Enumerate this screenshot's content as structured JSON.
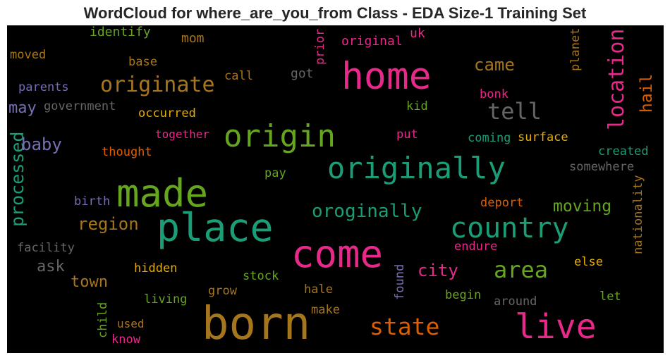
{
  "title": "WordCloud for where_are_you_from Class - EDA Size-1 Training Set",
  "background": "#000000",
  "words": [
    {
      "text": "born",
      "color": "#a6761d",
      "vertical": false
    },
    {
      "text": "place",
      "color": "#1b9e77",
      "vertical": false
    },
    {
      "text": "made",
      "color": "#66a61e",
      "vertical": false
    },
    {
      "text": "come",
      "color": "#e7298a",
      "vertical": false
    },
    {
      "text": "home",
      "color": "#e7298a",
      "vertical": false
    },
    {
      "text": "live",
      "color": "#e7298a",
      "vertical": false
    },
    {
      "text": "origin",
      "color": "#66a61e",
      "vertical": false
    },
    {
      "text": "originally",
      "color": "#1b9e77",
      "vertical": false
    },
    {
      "text": "country",
      "color": "#1b9e77",
      "vertical": false
    },
    {
      "text": "state",
      "color": "#d95f02",
      "vertical": false
    },
    {
      "text": "area",
      "color": "#66a61e",
      "vertical": false
    },
    {
      "text": "tell",
      "color": "#666666",
      "vertical": false
    },
    {
      "text": "originate",
      "color": "#a6761d",
      "vertical": false
    },
    {
      "text": "location",
      "color": "#e7298a",
      "vertical": true
    },
    {
      "text": "oroginally",
      "color": "#1b9e77",
      "vertical": false
    },
    {
      "text": "processed",
      "color": "#1b9e77",
      "vertical": true
    },
    {
      "text": "region",
      "color": "#a6761d",
      "vertical": false
    },
    {
      "text": "city",
      "color": "#e7298a",
      "vertical": false
    },
    {
      "text": "moving",
      "color": "#66a61e",
      "vertical": false
    },
    {
      "text": "baby",
      "color": "#7570b3",
      "vertical": false
    },
    {
      "text": "came",
      "color": "#a6761d",
      "vertical": false
    },
    {
      "text": "hail",
      "color": "#d95f02",
      "vertical": true
    },
    {
      "text": "town",
      "color": "#a6761d",
      "vertical": false
    },
    {
      "text": "ask",
      "color": "#666666",
      "vertical": false
    },
    {
      "text": "may",
      "color": "#7570b3",
      "vertical": false
    },
    {
      "text": "identify",
      "color": "#66a61e",
      "vertical": false
    },
    {
      "text": "mom",
      "color": "#a6761d",
      "vertical": false
    },
    {
      "text": "prior",
      "color": "#e7298a",
      "vertical": true
    },
    {
      "text": "original",
      "color": "#e7298a",
      "vertical": false
    },
    {
      "text": "uk",
      "color": "#e7298a",
      "vertical": false
    },
    {
      "text": "moved",
      "color": "#a6761d",
      "vertical": false
    },
    {
      "text": "base",
      "color": "#a6761d",
      "vertical": false
    },
    {
      "text": "planet",
      "color": "#a6761d",
      "vertical": true
    },
    {
      "text": "parents",
      "color": "#7570b3",
      "vertical": false
    },
    {
      "text": "call",
      "color": "#a6761d",
      "vertical": false
    },
    {
      "text": "got",
      "color": "#666666",
      "vertical": false
    },
    {
      "text": "government",
      "color": "#666666",
      "vertical": false
    },
    {
      "text": "bonk",
      "color": "#e7298a",
      "vertical": false
    },
    {
      "text": "occurred",
      "color": "#e6ab02",
      "vertical": false
    },
    {
      "text": "kid",
      "color": "#66a61e",
      "vertical": false
    },
    {
      "text": "together",
      "color": "#e7298a",
      "vertical": false
    },
    {
      "text": "put",
      "color": "#e7298a",
      "vertical": false
    },
    {
      "text": "coming",
      "color": "#1b9e77",
      "vertical": false
    },
    {
      "text": "surface",
      "color": "#e6ab02",
      "vertical": false
    },
    {
      "text": "thought",
      "color": "#d95f02",
      "vertical": false
    },
    {
      "text": "created",
      "color": "#1b9e77",
      "vertical": false
    },
    {
      "text": "somewhere",
      "color": "#666666",
      "vertical": false
    },
    {
      "text": "pay",
      "color": "#66a61e",
      "vertical": false
    },
    {
      "text": "nationality",
      "color": "#a6761d",
      "vertical": true
    },
    {
      "text": "birth",
      "color": "#7570b3",
      "vertical": false
    },
    {
      "text": "deport",
      "color": "#d95f02",
      "vertical": false
    },
    {
      "text": "facility",
      "color": "#666666",
      "vertical": false
    },
    {
      "text": "endure",
      "color": "#e7298a",
      "vertical": false
    },
    {
      "text": "hidden",
      "color": "#e6ab02",
      "vertical": false
    },
    {
      "text": "stock",
      "color": "#66a61e",
      "vertical": false
    },
    {
      "text": "found",
      "color": "#7570b3",
      "vertical": true
    },
    {
      "text": "else",
      "color": "#e6ab02",
      "vertical": false
    },
    {
      "text": "grow",
      "color": "#a6761d",
      "vertical": false
    },
    {
      "text": "hale",
      "color": "#a6761d",
      "vertical": false
    },
    {
      "text": "let",
      "color": "#66a61e",
      "vertical": false
    },
    {
      "text": "living",
      "color": "#66a61e",
      "vertical": false
    },
    {
      "text": "begin",
      "color": "#66a61e",
      "vertical": false
    },
    {
      "text": "around",
      "color": "#666666",
      "vertical": false
    },
    {
      "text": "child",
      "color": "#66a61e",
      "vertical": true
    },
    {
      "text": "make",
      "color": "#a6761d",
      "vertical": false
    },
    {
      "text": "used",
      "color": "#a6761d",
      "vertical": false
    },
    {
      "text": "know",
      "color": "#e7298a",
      "vertical": false
    }
  ]
}
